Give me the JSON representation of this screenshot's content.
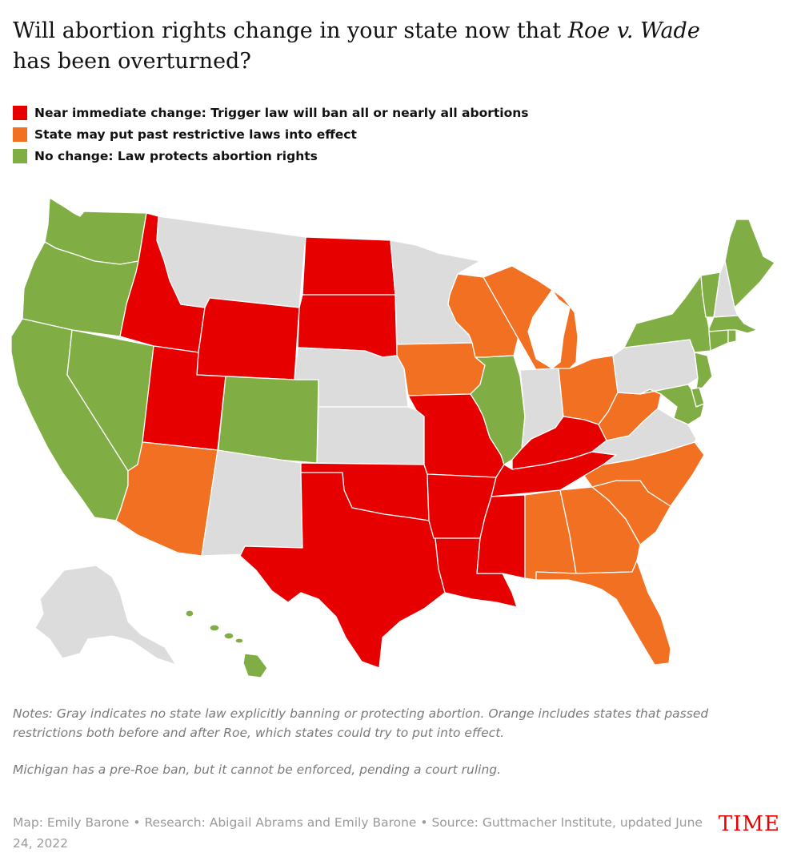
{
  "title": {
    "before": "Will abortion rights change in your state now that ",
    "italic": "Roe v. Wade",
    "after": "has been overturned?"
  },
  "colors": {
    "ban": "#e60000",
    "restrict": "#f27022",
    "protect": "#80ae44",
    "none": "#dcdcdc"
  },
  "legend": [
    {
      "category": "ban",
      "label": "Near immediate change: Trigger law will ban all or nearly all abortions"
    },
    {
      "category": "restrict",
      "label": "State may put past restrictive laws into effect"
    },
    {
      "category": "protect",
      "label": "No change: Law protects abortion rights"
    }
  ],
  "states": {
    "WA": "protect",
    "OR": "protect",
    "CA": "protect",
    "NV": "protect",
    "ID": "ban",
    "MT": "none",
    "WY": "ban",
    "UT": "ban",
    "CO": "protect",
    "AZ": "restrict",
    "NM": "none",
    "ND": "ban",
    "SD": "ban",
    "NE": "none",
    "KS": "none",
    "OK": "ban",
    "TX": "ban",
    "MN": "none",
    "IA": "restrict",
    "MO": "ban",
    "AR": "ban",
    "LA": "ban",
    "WI": "restrict",
    "IL": "protect",
    "MI": "restrict",
    "IN": "none",
    "OH": "restrict",
    "KY": "ban",
    "TN": "ban",
    "MS": "ban",
    "AL": "restrict",
    "GA": "restrict",
    "FL": "restrict",
    "SC": "restrict",
    "NC": "restrict",
    "VA": "none",
    "WV": "restrict",
    "PA": "none",
    "NY": "protect",
    "VT": "protect",
    "NH": "none",
    "ME": "protect",
    "MA": "protect",
    "RI": "protect",
    "CT": "protect",
    "NJ": "protect",
    "DE": "protect",
    "MD": "protect",
    "AK": "none",
    "HI": "protect"
  },
  "notes": [
    "Notes: Gray indicates no state law explicitly banning or protecting abortion. Orange includes states that passed restrictions both before and after Roe, which states could try to put into effect.",
    "Michigan has a pre-Roe ban, but it cannot be enforced, pending a court ruling."
  ],
  "credit": "Map: Emily Barone • Research: Abigail Abrams and Emily Barone • Source: Guttmacher Institute, updated June 24, 2022",
  "logo": "TIME"
}
